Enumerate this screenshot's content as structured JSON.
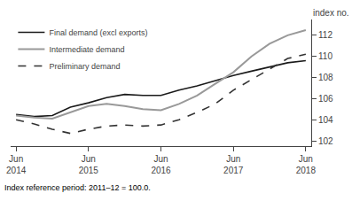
{
  "chart_data": {
    "type": "line",
    "ylabel": "index no.",
    "annotations": [
      {
        "text": "Index reference period: 2011–12 = 100.0."
      }
    ],
    "categories": [
      "Jun\n2014",
      null,
      null,
      null,
      "Jun\n2015",
      null,
      null,
      null,
      "Jun\n2016",
      null,
      null,
      null,
      "Jun\n2017",
      null,
      null,
      null,
      "Jun\n2018"
    ],
    "series": [
      {
        "name": "Final demand (excl exports)",
        "color": "#1a1a1a",
        "line_style": "solid",
        "values": [
          104.5,
          104.3,
          104.4,
          105.2,
          105.6,
          106.1,
          106.4,
          106.3,
          106.3,
          106.8,
          107.2,
          107.7,
          108.2,
          108.6,
          109.0,
          109.4,
          109.6
        ]
      },
      {
        "name": "Intermediate demand",
        "color": "#999999",
        "line_style": "solid",
        "values": [
          104.4,
          104.2,
          104.1,
          104.7,
          105.3,
          105.5,
          105.3,
          105.0,
          104.9,
          105.5,
          106.3,
          107.4,
          108.5,
          110.0,
          111.2,
          112.0,
          112.5
        ]
      },
      {
        "name": "Preliminary demand",
        "color": "#333333",
        "line_style": "dashed",
        "values": [
          104.0,
          103.6,
          103.1,
          102.7,
          103.1,
          103.4,
          103.5,
          103.4,
          103.5,
          104.0,
          104.7,
          105.5,
          106.8,
          107.8,
          108.8,
          109.8,
          110.2
        ]
      }
    ],
    "ylim": [
      101.5,
      113.5
    ],
    "yticks": [
      102,
      104,
      106,
      108,
      110,
      112
    ],
    "grid": false,
    "legend": "upper left"
  }
}
